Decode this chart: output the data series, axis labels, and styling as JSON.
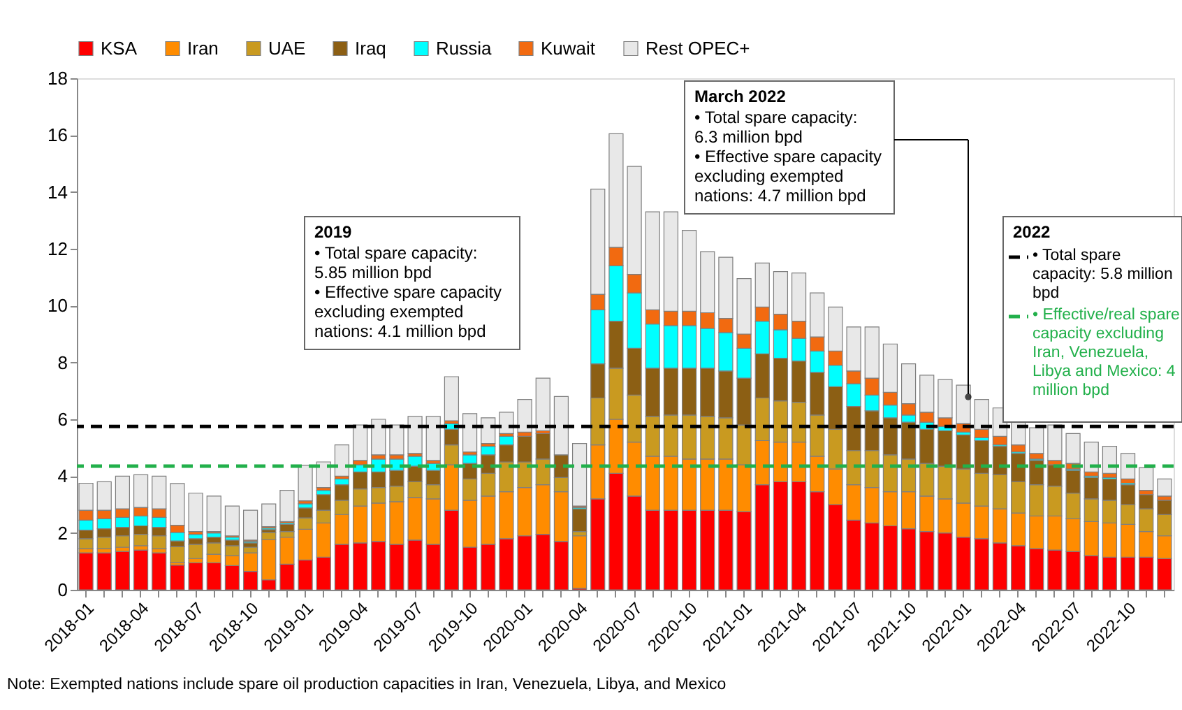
{
  "chart_data": {
    "type": "bar",
    "stacked": true,
    "categories": [
      "2018-01",
      null,
      null,
      "2018-04",
      null,
      null,
      "2018-07",
      null,
      null,
      "2018-10",
      null,
      null,
      "2019-01",
      null,
      null,
      "2019-04",
      null,
      null,
      "2019-07",
      null,
      null,
      "2019-10",
      null,
      null,
      "2020-01",
      null,
      null,
      "2020-04",
      null,
      null,
      "2020-07",
      null,
      null,
      "2020-10",
      null,
      null,
      "2021-01",
      null,
      null,
      "2021-04",
      null,
      null,
      "2021-07",
      null,
      null,
      "2021-10",
      null,
      null,
      "2022-01",
      null,
      null,
      "2022-04",
      null,
      null,
      "2022-07",
      null,
      null,
      "2022-10",
      null,
      null
    ],
    "series": [
      {
        "name": "KSA",
        "color": "#ff0000",
        "values": [
          1.3,
          1.3,
          1.35,
          1.4,
          1.3,
          0.87,
          0.95,
          0.95,
          0.85,
          0.65,
          0.35,
          0.9,
          1.05,
          1.15,
          1.6,
          1.65,
          1.7,
          1.6,
          1.75,
          1.6,
          2.8,
          1.5,
          1.6,
          1.8,
          1.9,
          1.95,
          1.7,
          0.05,
          3.2,
          4.1,
          3.3,
          2.8,
          2.8,
          2.8,
          2.8,
          2.8,
          2.75,
          3.7,
          3.8,
          3.8,
          3.45,
          3.0,
          2.45,
          2.35,
          2.25,
          2.15,
          2.05,
          2.0,
          1.85,
          1.8,
          1.65,
          1.55,
          1.45,
          1.4,
          1.35,
          1.2,
          1.15,
          1.15,
          1.15,
          1.1
        ]
      },
      {
        "name": "Iran",
        "color": "#ff8c00",
        "values": [
          0.15,
          0.15,
          0.15,
          0.15,
          0.15,
          0.1,
          0.15,
          0.3,
          0.35,
          0.65,
          1.42,
          0.95,
          1.08,
          1.2,
          1.05,
          1.3,
          1.35,
          1.5,
          1.5,
          1.6,
          1.6,
          1.65,
          1.7,
          1.65,
          1.7,
          1.75,
          1.75,
          1.85,
          1.9,
          1.9,
          1.9,
          1.9,
          1.9,
          1.8,
          1.8,
          1.8,
          1.65,
          1.55,
          1.4,
          1.4,
          1.25,
          1.25,
          1.25,
          1.25,
          1.2,
          1.3,
          1.25,
          1.2,
          1.2,
          1.15,
          1.2,
          1.15,
          1.15,
          1.2,
          1.15,
          1.2,
          1.2,
          1.15,
          0.9,
          0.8
        ]
      },
      {
        "name": "UAE",
        "color": "#c99a20",
        "values": [
          0.35,
          0.4,
          0.4,
          0.4,
          0.45,
          0.55,
          0.5,
          0.4,
          0.35,
          0.2,
          0.25,
          0.2,
          0.4,
          0.45,
          0.5,
          0.6,
          0.55,
          0.55,
          0.55,
          0.5,
          0.7,
          0.75,
          0.8,
          1.05,
          0.9,
          0.9,
          0.5,
          0.15,
          1.65,
          1.8,
          1.65,
          1.4,
          1.45,
          1.55,
          1.5,
          1.45,
          1.4,
          1.5,
          1.45,
          1.4,
          1.45,
          1.4,
          1.2,
          1.3,
          1.3,
          1.15,
          1.15,
          1.15,
          1.2,
          1.15,
          1.2,
          1.1,
          1.1,
          1.05,
          0.9,
          0.8,
          0.8,
          0.7,
          0.8,
          0.75
        ]
      },
      {
        "name": "Iraq",
        "color": "#8c5f14",
        "values": [
          0.3,
          0.3,
          0.3,
          0.3,
          0.3,
          0.2,
          0.2,
          0.2,
          0.2,
          0.15,
          0.1,
          0.25,
          0.35,
          0.55,
          0.55,
          0.6,
          0.55,
          0.55,
          0.55,
          0.5,
          0.55,
          0.55,
          0.65,
          0.6,
          0.9,
          0.9,
          0.8,
          0.8,
          1.2,
          1.65,
          1.65,
          1.7,
          1.65,
          1.65,
          1.7,
          1.65,
          1.65,
          1.55,
          1.5,
          1.45,
          1.5,
          1.5,
          1.55,
          1.4,
          1.3,
          1.3,
          1.2,
          1.25,
          1.2,
          1.15,
          1.0,
          1.0,
          0.85,
          0.75,
          0.8,
          0.75,
          0.75,
          0.7,
          0.5,
          0.5
        ]
      },
      {
        "name": "Russia",
        "color": "#00ffff",
        "values": [
          0.35,
          0.35,
          0.35,
          0.35,
          0.35,
          0.3,
          0.15,
          0.15,
          0.1,
          0.05,
          0.05,
          0.05,
          0.15,
          0.15,
          0.2,
          0.25,
          0.45,
          0.4,
          0.35,
          0.25,
          0.2,
          0.3,
          0.3,
          0.3,
          0,
          0,
          0,
          0.05,
          1.9,
          1.95,
          1.95,
          1.55,
          1.5,
          1.5,
          1.4,
          1.35,
          1.05,
          1.15,
          1.0,
          0.8,
          0.75,
          0.75,
          0.8,
          0.55,
          0.45,
          0.25,
          0.25,
          0.15,
          0.1,
          0.1,
          0.05,
          0.05,
          0.05,
          null,
          0.05,
          0.05,
          0.05,
          0.05,
          0,
          0
        ]
      },
      {
        "name": "Kuwait",
        "color": "#f26a10",
        "values": [
          0.35,
          0.3,
          0.3,
          0.3,
          0.3,
          0.25,
          0.1,
          0.05,
          0.05,
          0.05,
          0.05,
          0.05,
          0.1,
          0.1,
          0.1,
          0.15,
          0.15,
          0.15,
          0.1,
          0.1,
          0.1,
          0.1,
          0.1,
          0.1,
          0.15,
          0.1,
          0,
          0.05,
          0.55,
          0.65,
          0.65,
          0.5,
          0.5,
          0.5,
          0.55,
          0.5,
          0.5,
          0.5,
          0.55,
          0.6,
          0.5,
          0.5,
          0.45,
          0.6,
          0.45,
          0.4,
          0.35,
          0.3,
          0.3,
          0.3,
          0.3,
          0.25,
          0.2,
          0.15,
          0.2,
          0.15,
          0.15,
          0.15,
          0.15,
          0.15
        ]
      },
      {
        "name": "Rest OPEC+",
        "color": "#e8e8e8",
        "values": [
          0.95,
          1.0,
          1.15,
          1.15,
          1.15,
          1.47,
          1.35,
          1.25,
          1.05,
          1.05,
          0.8,
          1.1,
          1.25,
          0.9,
          1.1,
          1.25,
          1.25,
          1.05,
          1.3,
          1.55,
          1.55,
          1.35,
          0.9,
          0.75,
          1.15,
          1.85,
          2.05,
          2.2,
          3.7,
          4.0,
          3.8,
          3.45,
          3.5,
          2.85,
          2.15,
          2.15,
          1.95,
          1.55,
          1.5,
          1.7,
          1.55,
          1.55,
          1.55,
          1.8,
          1.7,
          1.4,
          1.3,
          1.35,
          1.35,
          1.05,
          1.0,
          0.9,
          0.9,
          1.25,
          1.05,
          1.05,
          0.95,
          0.9,
          0.8,
          0.6
        ]
      }
    ],
    "ylim": [
      0,
      18
    ],
    "yticks": [
      0,
      2,
      4,
      6,
      8,
      10,
      12,
      14,
      16,
      18
    ],
    "grid": false,
    "legend": "top",
    "ref_lines": [
      {
        "axis": "y",
        "value": 5.75,
        "color": "#000000",
        "line_style": "dashed",
        "label": "• Total spare\n  capacity: 5.8 million\n  bpd"
      },
      {
        "axis": "y",
        "value": 4.35,
        "color": "#22b04b",
        "line_style": "dashed",
        "label": "• Effective/real spare\n  capacity excluding\n  Iran, Venezuela,\n  Libya and Mexico: 4\n  million bpd"
      }
    ],
    "annotations": [
      "2019\n• Total spare capacity:\n  5.85 million bpd\n• Effective spare capacity\n  excluding exempted\n  nations: 4.1 million bpd",
      "March 2022\n• Total spare capacity:\n  6.3 million bpd\n• Effective spare capacity\n  excluding exempted\n  nations: 4.7 million bpd",
      "2022",
      "Note: Exempted nations include spare oil production capacities in Iran, Venezuela, Libya, and Mexico"
    ]
  }
}
